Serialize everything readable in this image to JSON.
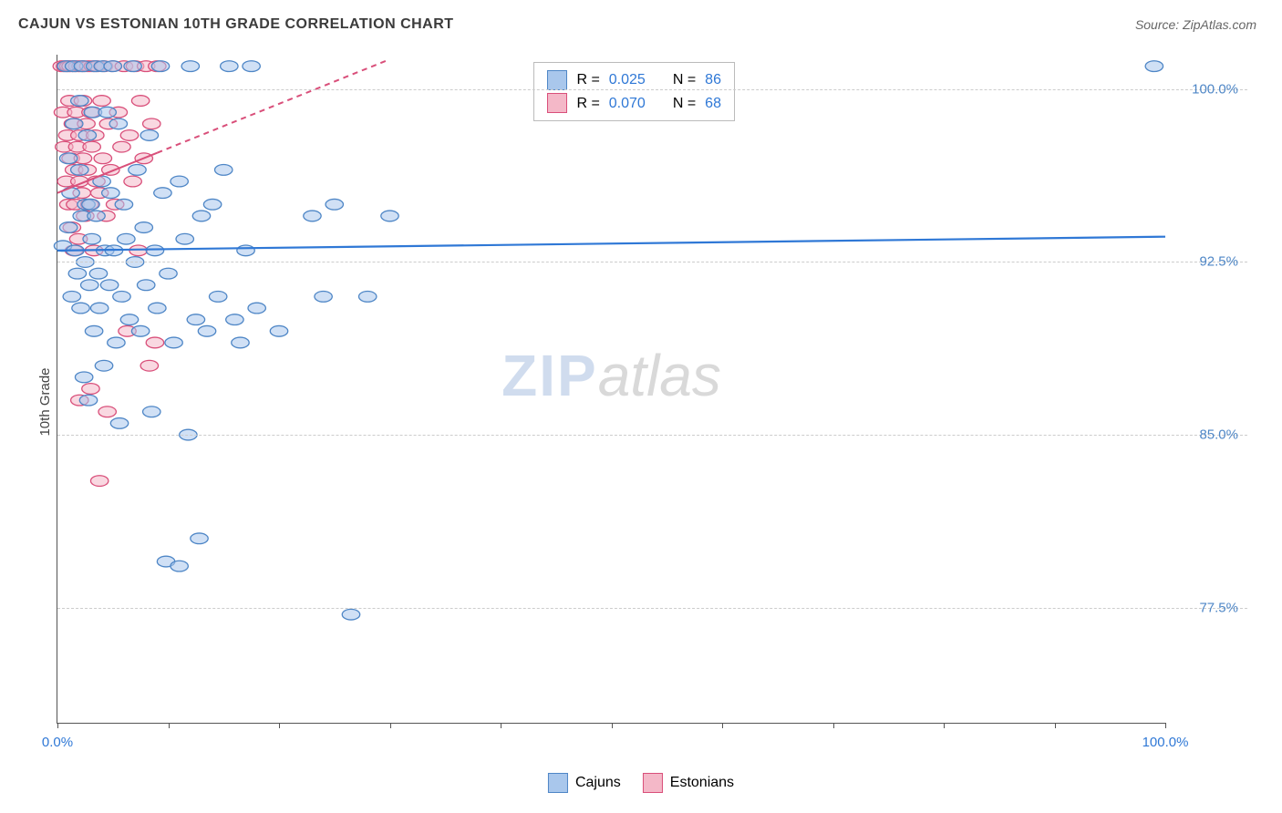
{
  "title": "CAJUN VS ESTONIAN 10TH GRADE CORRELATION CHART",
  "source": "Source: ZipAtlas.com",
  "ylabel": "10th Grade",
  "watermark": {
    "left": "ZIP",
    "right": "atlas"
  },
  "chart": {
    "type": "scatter",
    "xlim": [
      0,
      100
    ],
    "ylim": [
      72.5,
      101.5
    ],
    "x_axis_min_label": "0.0%",
    "x_axis_max_label": "100.0%",
    "xtick_positions": [
      0,
      10,
      20,
      30,
      40,
      50,
      60,
      70,
      80,
      90,
      100
    ],
    "yticks": [
      {
        "v": 100.0,
        "label": "100.0%"
      },
      {
        "v": 92.5,
        "label": "92.5%"
      },
      {
        "v": 85.0,
        "label": "85.0%"
      },
      {
        "v": 77.5,
        "label": "77.5%"
      }
    ],
    "grid_color": "#cccccc",
    "background": "#ffffff",
    "marker_radius": 8,
    "marker_opacity": 0.55,
    "series": [
      {
        "name": "Cajuns",
        "color_fill": "#a9c7ec",
        "color_stroke": "#4e86c6",
        "R": "0.025",
        "N": "86",
        "trend": {
          "x1": 0,
          "y1": 93.0,
          "x2": 100,
          "y2": 93.6,
          "dashed": false,
          "width": 2.2,
          "color": "#2f78d6"
        },
        "points": [
          [
            0.5,
            93.2
          ],
          [
            0.8,
            101.0
          ],
          [
            1.0,
            94.0
          ],
          [
            1.0,
            97.0
          ],
          [
            1.2,
            95.5
          ],
          [
            1.3,
            91.0
          ],
          [
            1.5,
            101.0
          ],
          [
            1.5,
            98.5
          ],
          [
            1.6,
            93.0
          ],
          [
            1.8,
            92.0
          ],
          [
            2.0,
            99.5
          ],
          [
            2.0,
            96.5
          ],
          [
            2.1,
            90.5
          ],
          [
            2.2,
            94.5
          ],
          [
            2.3,
            101.0
          ],
          [
            2.4,
            87.5
          ],
          [
            2.5,
            92.5
          ],
          [
            2.6,
            95.0
          ],
          [
            2.7,
            98.0
          ],
          [
            2.8,
            86.5
          ],
          [
            2.9,
            91.5
          ],
          [
            3.0,
            95.0
          ],
          [
            3.1,
            93.5
          ],
          [
            3.2,
            99.0
          ],
          [
            3.3,
            89.5
          ],
          [
            3.4,
            101.0
          ],
          [
            3.5,
            94.5
          ],
          [
            3.7,
            92.0
          ],
          [
            3.8,
            90.5
          ],
          [
            4.0,
            96.0
          ],
          [
            4.1,
            101.0
          ],
          [
            4.2,
            88.0
          ],
          [
            4.3,
            93.0
          ],
          [
            4.5,
            99.0
          ],
          [
            4.7,
            91.5
          ],
          [
            4.8,
            95.5
          ],
          [
            5.0,
            101.0
          ],
          [
            5.1,
            93.0
          ],
          [
            5.3,
            89.0
          ],
          [
            5.5,
            98.5
          ],
          [
            5.6,
            85.5
          ],
          [
            5.8,
            91.0
          ],
          [
            6.0,
            95.0
          ],
          [
            6.2,
            93.5
          ],
          [
            6.5,
            90.0
          ],
          [
            6.8,
            101.0
          ],
          [
            7.0,
            92.5
          ],
          [
            7.2,
            96.5
          ],
          [
            7.5,
            89.5
          ],
          [
            7.8,
            94.0
          ],
          [
            8.0,
            91.5
          ],
          [
            8.3,
            98.0
          ],
          [
            8.5,
            86.0
          ],
          [
            8.8,
            93.0
          ],
          [
            9.0,
            90.5
          ],
          [
            9.3,
            101.0
          ],
          [
            9.5,
            95.5
          ],
          [
            9.8,
            79.5
          ],
          [
            10.0,
            92.0
          ],
          [
            10.5,
            89.0
          ],
          [
            11.0,
            96.0
          ],
          [
            11.0,
            79.3
          ],
          [
            11.5,
            93.5
          ],
          [
            11.8,
            85.0
          ],
          [
            12.0,
            101.0
          ],
          [
            12.5,
            90.0
          ],
          [
            12.8,
            80.5
          ],
          [
            13.0,
            94.5
          ],
          [
            13.5,
            89.5
          ],
          [
            14.0,
            95.0
          ],
          [
            14.5,
            91.0
          ],
          [
            15.0,
            96.5
          ],
          [
            15.5,
            101.0
          ],
          [
            16.0,
            90.0
          ],
          [
            16.5,
            89.0
          ],
          [
            17.0,
            93.0
          ],
          [
            17.5,
            101.0
          ],
          [
            18.0,
            90.5
          ],
          [
            20.0,
            89.5
          ],
          [
            23.0,
            94.5
          ],
          [
            24.0,
            91.0
          ],
          [
            25.0,
            95.0
          ],
          [
            26.5,
            77.2
          ],
          [
            28.0,
            91.0
          ],
          [
            30.0,
            94.5
          ],
          [
            99.0,
            101.0
          ]
        ]
      },
      {
        "name": "Estonians",
        "color_fill": "#f4b8c8",
        "color_stroke": "#d94f7a",
        "R": "0.070",
        "N": "68",
        "trend": {
          "x1": 0,
          "y1": 95.5,
          "x2": 30,
          "y2": 101.3,
          "dashed": true,
          "dashed_from": 9,
          "width": 2.0,
          "color": "#d94f7a"
        },
        "points": [
          [
            0.4,
            101.0
          ],
          [
            0.5,
            99.0
          ],
          [
            0.6,
            97.5
          ],
          [
            0.7,
            101.0
          ],
          [
            0.8,
            96.0
          ],
          [
            0.9,
            98.0
          ],
          [
            1.0,
            101.0
          ],
          [
            1.0,
            95.0
          ],
          [
            1.1,
            99.5
          ],
          [
            1.2,
            97.0
          ],
          [
            1.2,
            101.0
          ],
          [
            1.3,
            94.0
          ],
          [
            1.4,
            98.5
          ],
          [
            1.5,
            96.5
          ],
          [
            1.5,
            101.0
          ],
          [
            1.6,
            95.0
          ],
          [
            1.7,
            99.0
          ],
          [
            1.8,
            97.5
          ],
          [
            1.8,
            101.0
          ],
          [
            1.9,
            93.5
          ],
          [
            2.0,
            98.0
          ],
          [
            2.0,
            96.0
          ],
          [
            2.1,
            101.0
          ],
          [
            2.2,
            95.5
          ],
          [
            2.3,
            99.5
          ],
          [
            2.3,
            97.0
          ],
          [
            2.4,
            101.0
          ],
          [
            2.5,
            94.5
          ],
          [
            2.6,
            98.5
          ],
          [
            2.7,
            96.5
          ],
          [
            2.8,
            101.0
          ],
          [
            2.9,
            95.0
          ],
          [
            3.0,
            99.0
          ],
          [
            3.1,
            97.5
          ],
          [
            3.2,
            101.0
          ],
          [
            3.3,
            93.0
          ],
          [
            3.4,
            98.0
          ],
          [
            3.5,
            96.0
          ],
          [
            3.6,
            101.0
          ],
          [
            3.8,
            95.5
          ],
          [
            4.0,
            99.5
          ],
          [
            4.1,
            97.0
          ],
          [
            4.2,
            101.0
          ],
          [
            4.4,
            94.5
          ],
          [
            4.6,
            98.5
          ],
          [
            4.8,
            96.5
          ],
          [
            5.0,
            101.0
          ],
          [
            5.2,
            95.0
          ],
          [
            5.5,
            99.0
          ],
          [
            5.8,
            97.5
          ],
          [
            6.0,
            101.0
          ],
          [
            6.3,
            89.5
          ],
          [
            6.5,
            98.0
          ],
          [
            6.8,
            96.0
          ],
          [
            7.0,
            101.0
          ],
          [
            7.3,
            93.0
          ],
          [
            7.5,
            99.5
          ],
          [
            7.8,
            97.0
          ],
          [
            8.0,
            101.0
          ],
          [
            8.3,
            88.0
          ],
          [
            8.5,
            98.5
          ],
          [
            8.8,
            89.0
          ],
          [
            9.0,
            101.0
          ],
          [
            3.0,
            87.0
          ],
          [
            3.8,
            83.0
          ],
          [
            2.0,
            86.5
          ],
          [
            4.5,
            86.0
          ],
          [
            1.5,
            93.0
          ]
        ]
      }
    ]
  },
  "legend_stats": {
    "r_label": "R =",
    "n_label": "N ="
  },
  "bottom_legend": [
    {
      "label": "Cajuns",
      "fill": "#a9c7ec",
      "stroke": "#4e86c6"
    },
    {
      "label": "Estonians",
      "fill": "#f4b8c8",
      "stroke": "#d94f7a"
    }
  ],
  "colors": {
    "value_text": "#2f78d6",
    "label_text": "#555555",
    "axis_label_blue": "#2f78d6",
    "ytick_text": "#4e86c6"
  }
}
